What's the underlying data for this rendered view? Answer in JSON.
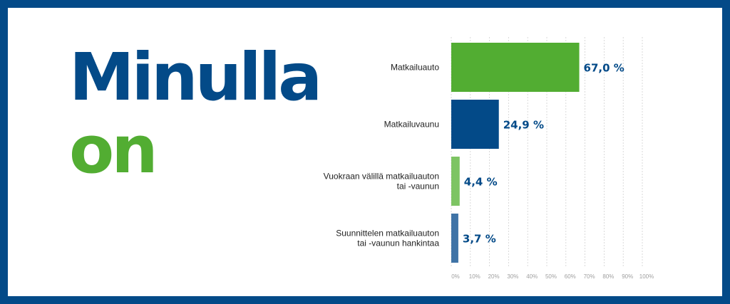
{
  "headline": {
    "line1": "Minulla",
    "line2": "on"
  },
  "colors": {
    "border": "#034a88",
    "primary": "#034a88",
    "accent": "#52ad32"
  },
  "chart_data": {
    "type": "bar",
    "orientation": "horizontal",
    "categories": [
      [
        "Matkailuauto"
      ],
      [
        "Matkailuvaunu"
      ],
      [
        "Vuokraan välillä matkailuauton",
        "tai -vaunun"
      ],
      [
        "Suunnittelen matkailuauton",
        "tai -vaunun hankintaa"
      ]
    ],
    "values": [
      67.0,
      24.9,
      4.4,
      3.7
    ],
    "value_labels": [
      "67,0 %",
      "24,9 %",
      "4,4 %",
      "3,7 %"
    ],
    "bar_colors": [
      "#52ad32",
      "#034a88",
      "#7dc463",
      "#3f73a6"
    ],
    "xlim": [
      0,
      100
    ],
    "xticks": [
      "0%",
      "10%",
      "20%",
      "30%",
      "40%",
      "50%",
      "60%",
      "70%",
      "80%",
      "90%",
      "100%"
    ],
    "grid": true
  }
}
